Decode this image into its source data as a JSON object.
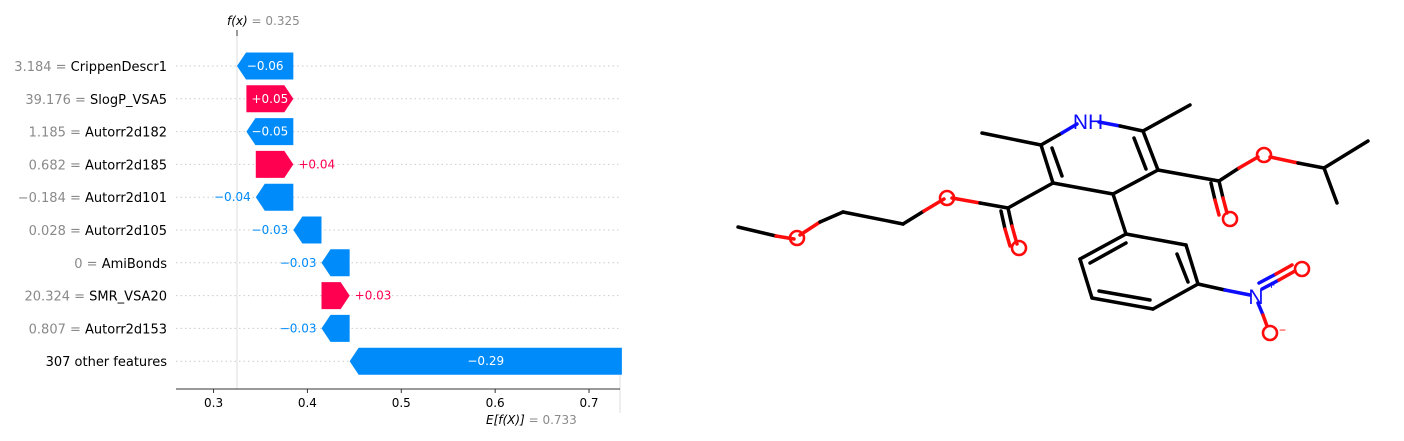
{
  "chart_data": {
    "type": "waterfall",
    "base_value_label": "E[f(X)]",
    "base_value": "0.733",
    "output_value_label": "f(x)",
    "output_value": "0.325",
    "features": [
      {
        "value": "3.184",
        "name": "CrippenDescr1",
        "contribution": -0.06,
        "label": "−0.06"
      },
      {
        "value": "39.176",
        "name": "SlogP_VSA5",
        "contribution": 0.05,
        "label": "+0.05"
      },
      {
        "value": "1.185",
        "name": "Autorr2d182",
        "contribution": -0.05,
        "label": "−0.05"
      },
      {
        "value": "0.682",
        "name": "Autorr2d185",
        "contribution": 0.04,
        "label": "+0.04"
      },
      {
        "value": "−0.184",
        "name": "Autorr2d101",
        "contribution": -0.04,
        "label": "−0.04"
      },
      {
        "value": "0.028",
        "name": "Autorr2d105",
        "contribution": -0.03,
        "label": "−0.03"
      },
      {
        "value": "0",
        "name": "AmiBonds",
        "contribution": -0.03,
        "label": "−0.03"
      },
      {
        "value": "20.324",
        "name": "SMR_VSA20",
        "contribution": 0.03,
        "label": "+0.03"
      },
      {
        "value": "0.807",
        "name": "Autorr2d153",
        "contribution": -0.03,
        "label": "−0.03"
      },
      {
        "value": "",
        "name": "307 other features",
        "contribution": -0.29,
        "label": "−0.29"
      }
    ],
    "bar_end": [
      0.325,
      0.385,
      0.335,
      0.385,
      0.345,
      0.385,
      0.415,
      0.445,
      0.415,
      0.445
    ],
    "xticks": [
      "0.3",
      "0.4",
      "0.5",
      "0.6",
      "0.7"
    ],
    "xtick_values": [
      0.3,
      0.4,
      0.5,
      0.6,
      0.7
    ],
    "xlim": [
      0.26,
      0.733
    ],
    "colors": {
      "positive": "#ff0051",
      "negative": "#008bfb",
      "grid": "#cccccc",
      "muted": "#8a8a8a"
    }
  },
  "molecule": {
    "atom_labels": {
      "nh": "NH",
      "n_plus": "N",
      "charge_plus": "+",
      "charge_minus": "−"
    }
  }
}
